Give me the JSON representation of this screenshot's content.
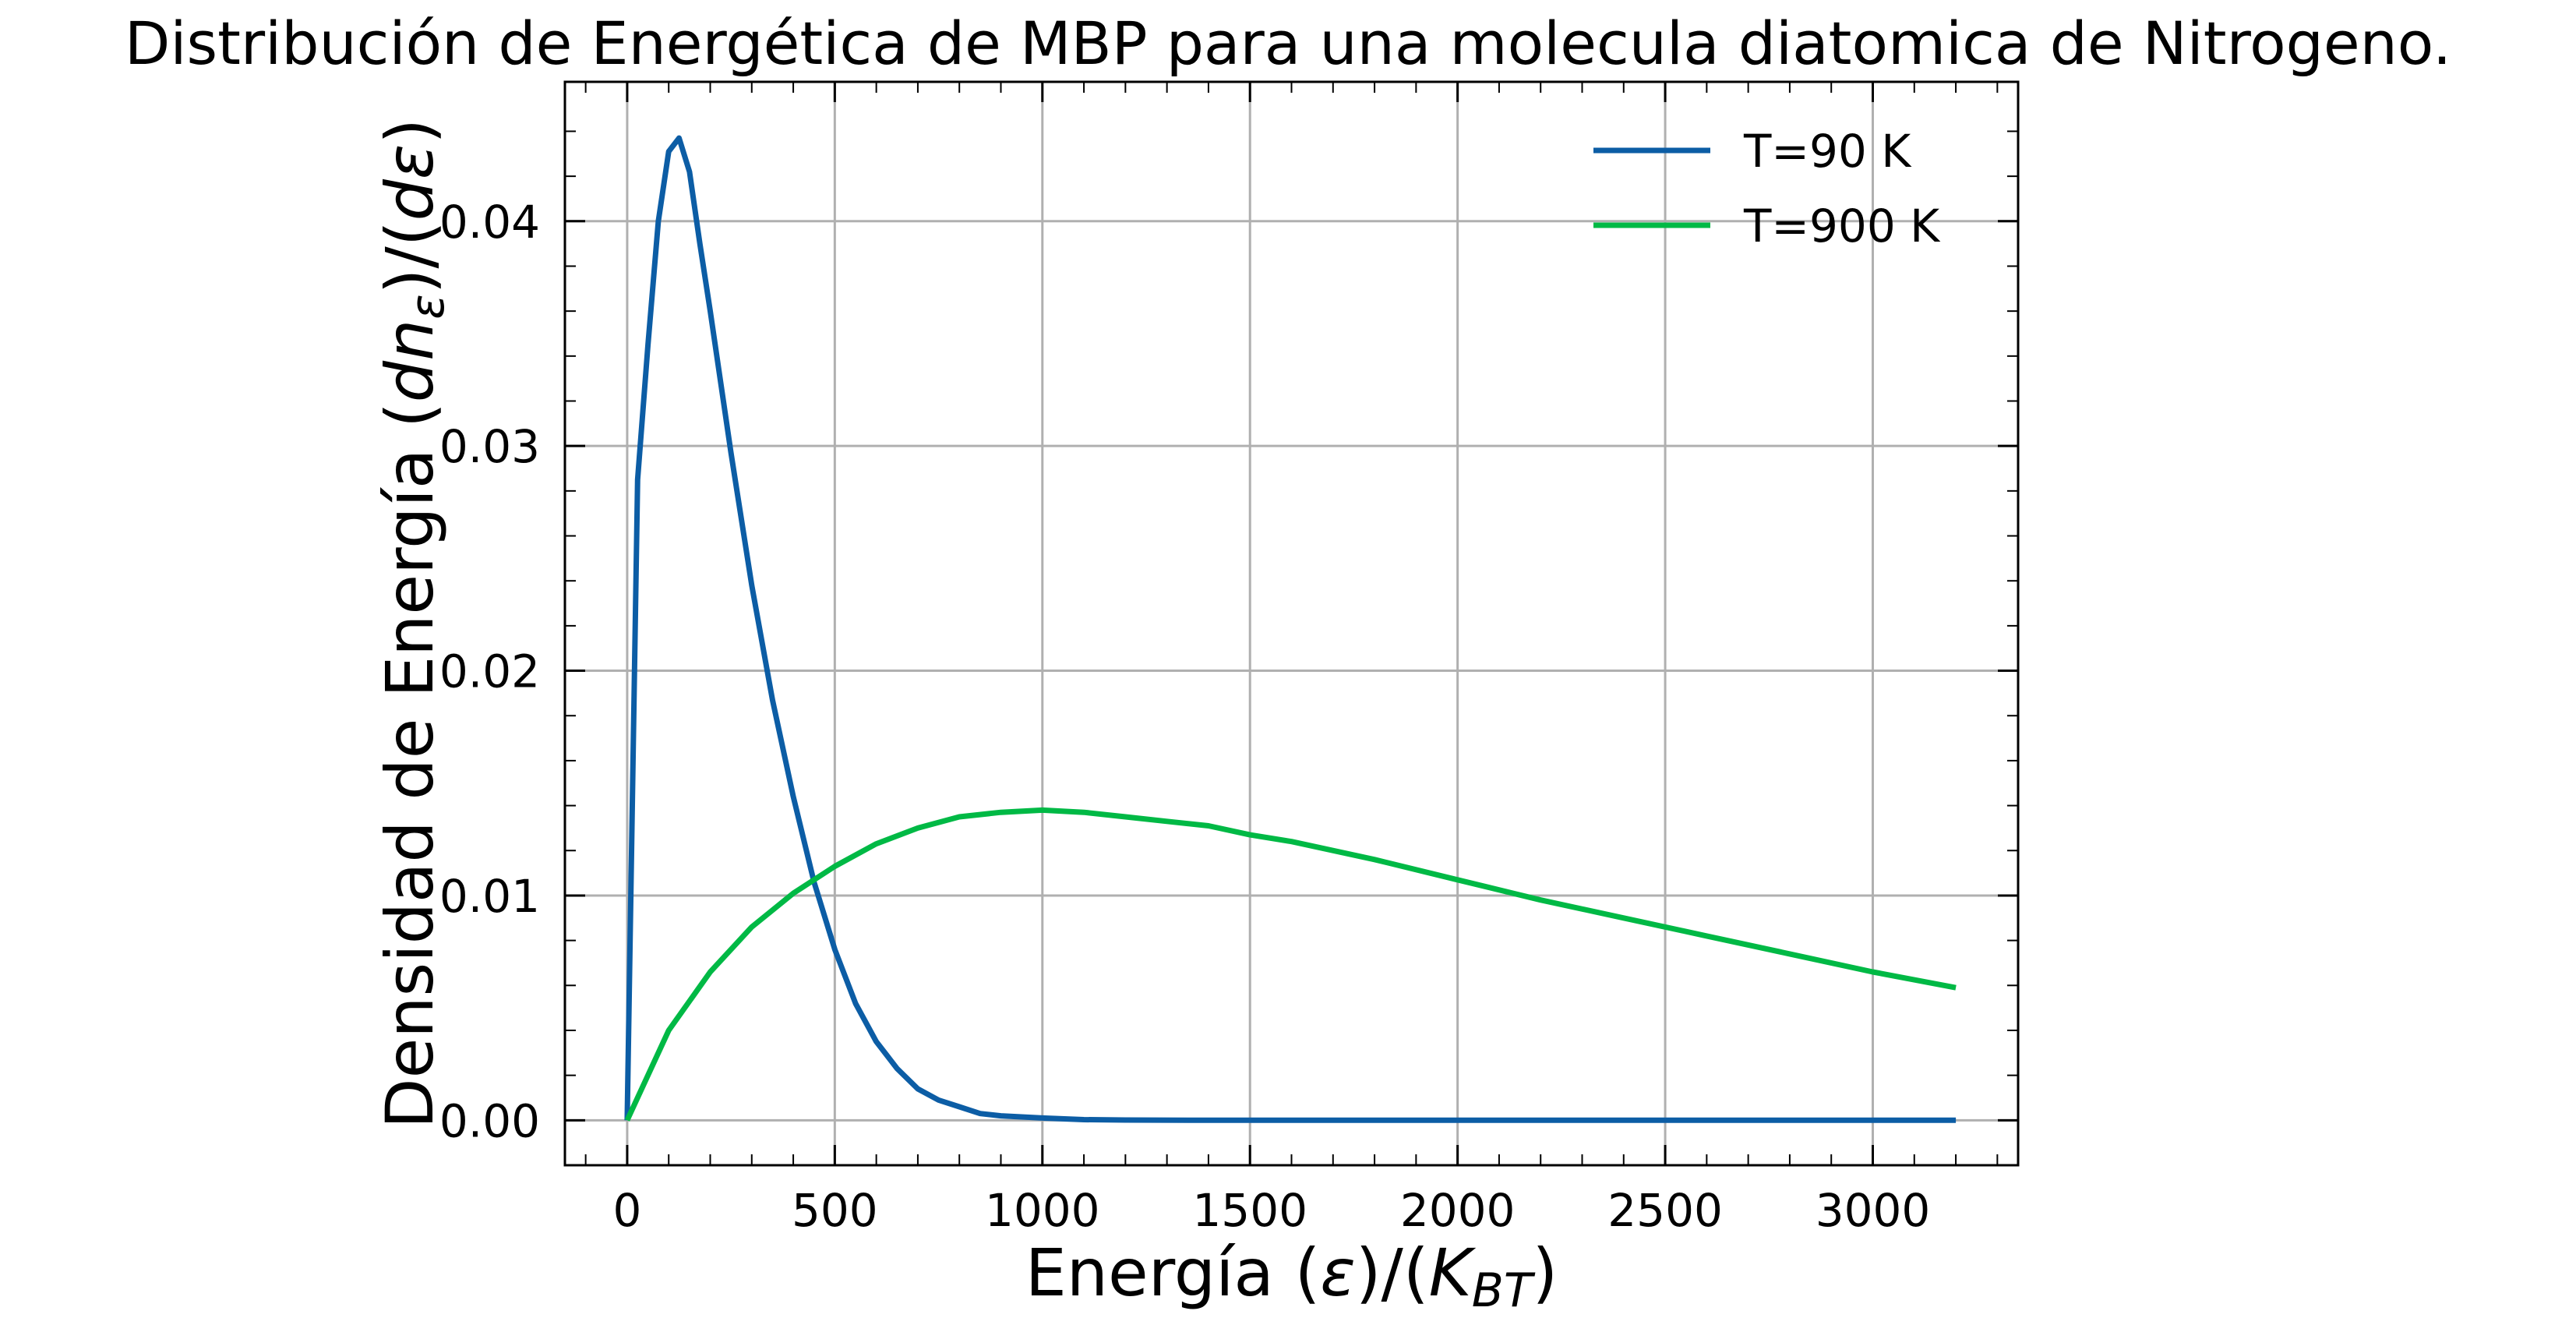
{
  "chart_data": {
    "type": "line",
    "title": "Distribución de Energética de MBP para una molecula diatomica de Nitrogeno.",
    "xlabel": {
      "main": "Energía (",
      "eps": "ε",
      "mid": ")/(",
      "k": "K",
      "sub": "BT",
      "end": ")"
    },
    "ylabel": {
      "main": "Densidad de Energía (",
      "d1": "dn",
      "sub": "ε",
      "mid": ")/(",
      "d2": "dε",
      "end": ")"
    },
    "xlim": [
      -150,
      3350
    ],
    "ylim": [
      -0.002,
      0.0462
    ],
    "xticks": [
      0,
      500,
      1000,
      1500,
      2000,
      2500,
      3000
    ],
    "xtick_labels": [
      "0",
      "500",
      "1000",
      "1500",
      "2000",
      "2500",
      "3000"
    ],
    "yticks": [
      0.0,
      0.01,
      0.02,
      0.03,
      0.04
    ],
    "ytick_labels": [
      "0.00",
      "0.01",
      "0.02",
      "0.03",
      "0.04"
    ],
    "grid": true,
    "legend_position": "top-right",
    "series": [
      {
        "name": "T=90 K",
        "color": "#0C5DA5",
        "x": [
          0,
          25,
          50,
          75,
          100,
          125,
          150,
          175,
          200,
          250,
          300,
          350,
          400,
          450,
          500,
          550,
          600,
          650,
          700,
          750,
          800,
          850,
          900,
          1000,
          1100,
          1200,
          1400,
          1600,
          1800,
          2000,
          2400,
          2800,
          3200
        ],
        "y": [
          0.0,
          0.0285,
          0.0345,
          0.04,
          0.0431,
          0.0437,
          0.0422,
          0.039,
          0.036,
          0.0297,
          0.0238,
          0.0187,
          0.0144,
          0.0106,
          0.0076,
          0.0052,
          0.0035,
          0.0023,
          0.0014,
          0.0009,
          0.0006,
          0.0003,
          0.0002,
          0.0001,
          3e-05,
          1e-05,
          0.0,
          0.0,
          0.0,
          0.0,
          0.0,
          0.0,
          0.0
        ]
      },
      {
        "name": "T=900 K",
        "color": "#00B945",
        "x": [
          0,
          100,
          200,
          300,
          400,
          500,
          600,
          700,
          800,
          900,
          1000,
          1100,
          1200,
          1300,
          1400,
          1500,
          1600,
          1800,
          2000,
          2200,
          2400,
          2600,
          2800,
          3000,
          3200
        ],
        "y": [
          0.0,
          0.004,
          0.0066,
          0.0086,
          0.0101,
          0.0113,
          0.0123,
          0.013,
          0.0135,
          0.0137,
          0.0138,
          0.0137,
          0.0135,
          0.0133,
          0.0131,
          0.0127,
          0.0124,
          0.0116,
          0.0107,
          0.0098,
          0.009,
          0.0082,
          0.0074,
          0.0066,
          0.0059
        ]
      }
    ]
  }
}
